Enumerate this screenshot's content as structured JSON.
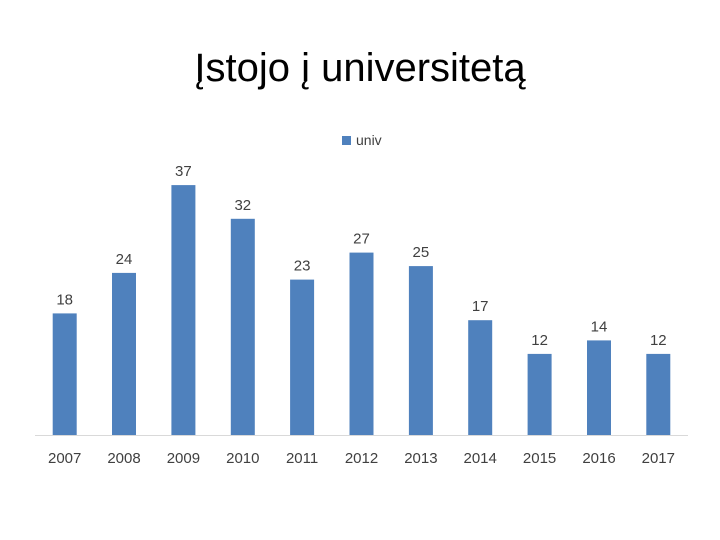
{
  "slide": {
    "title": "Įstojo į universitetą"
  },
  "chart_data": {
    "type": "bar",
    "categories": [
      "2007",
      "2008",
      "2009",
      "2010",
      "2011",
      "2012",
      "2013",
      "2014",
      "2015",
      "2016",
      "2017"
    ],
    "series": [
      {
        "name": "univ",
        "values": [
          18,
          24,
          37,
          32,
          23,
          27,
          25,
          17,
          12,
          14,
          12
        ],
        "color": "#4f81bd"
      }
    ],
    "ylim": [
      0,
      40
    ],
    "grid": false,
    "data_labels": true,
    "legend_position": "top"
  }
}
